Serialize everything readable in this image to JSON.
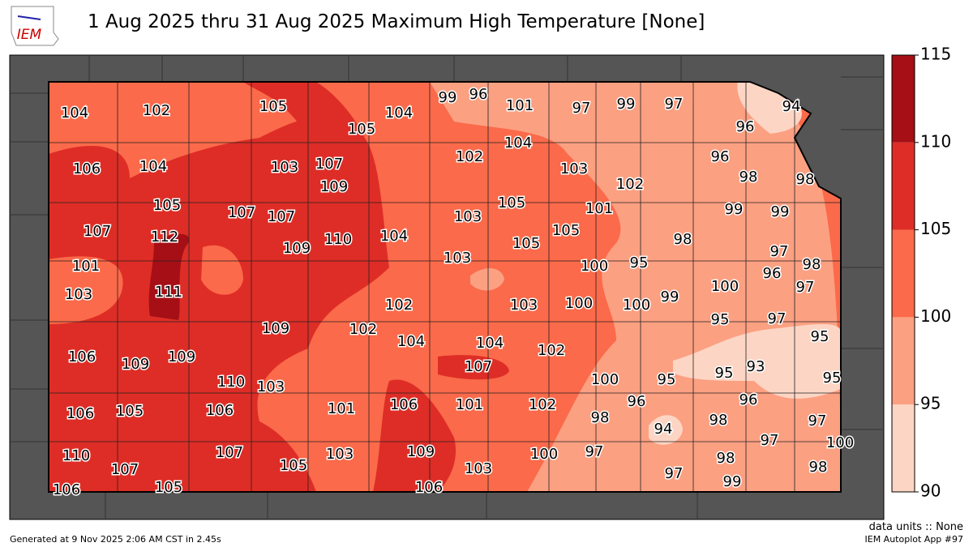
{
  "logo": "IEM",
  "title": "1 Aug 2025 thru 31 Aug 2025 Maximum High Temperature [None]",
  "colorbar": {
    "ticks": [
      90,
      95,
      100,
      105,
      110,
      115
    ],
    "colors": [
      "#fdd5c4",
      "#fca082",
      "#fb6a4a",
      "#de2d26",
      "#a50f15"
    ]
  },
  "stations": {
    "values": [
      104,
      102,
      105,
      105,
      104,
      99,
      96,
      101,
      97,
      99,
      97,
      94,
      96,
      106,
      104,
      103,
      107,
      109,
      102,
      104,
      103,
      102,
      96,
      98,
      98,
      105,
      107,
      107,
      103,
      105,
      101,
      99,
      99,
      107,
      112,
      109,
      110,
      104,
      105,
      105,
      98,
      97,
      101,
      103,
      100,
      95,
      98,
      96,
      103,
      111,
      102,
      103,
      100,
      100,
      99,
      100,
      97,
      109,
      102,
      104,
      104,
      95,
      97,
      95,
      106,
      109,
      109,
      102,
      107,
      93,
      95,
      110,
      103,
      100,
      95,
      95,
      96,
      96,
      106,
      105,
      106,
      101,
      106,
      101,
      102,
      98,
      94,
      98,
      97,
      110,
      107,
      107,
      105,
      103,
      109,
      103,
      100,
      97,
      97,
      98,
      97,
      100,
      98,
      106,
      105,
      106,
      99
    ]
  },
  "units_note": "data units :: None",
  "generated": "Generated at 9 Nov 2025 2:06 AM CST in 2.45s",
  "app": "IEM Autoplot App #97"
}
